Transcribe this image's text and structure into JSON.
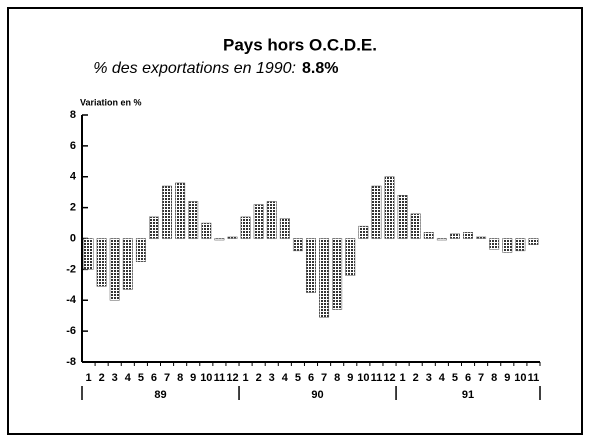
{
  "chart_data": {
    "type": "bar",
    "title": "Pays hors O.C.D.E.",
    "subtitle": "% des exportations en 1990:",
    "subtitle_value": "8.8%",
    "ylabel": "Variation en %",
    "categories": [
      "1",
      "2",
      "3",
      "4",
      "5",
      "6",
      "7",
      "8",
      "9",
      "10",
      "11",
      "12",
      "1",
      "2",
      "3",
      "4",
      "5",
      "6",
      "7",
      "8",
      "9",
      "10",
      "11",
      "12",
      "1",
      "2",
      "3",
      "4",
      "5",
      "6",
      "7",
      "8",
      "9",
      "10",
      "11"
    ],
    "groups": [
      "89",
      "90",
      "91"
    ],
    "values": [
      -2.0,
      -3.1,
      -4.0,
      -3.3,
      -1.5,
      1.4,
      3.4,
      3.6,
      2.4,
      1.0,
      -0.1,
      0.1,
      1.4,
      2.2,
      2.4,
      1.3,
      -0.8,
      -3.5,
      -5.1,
      -4.6,
      -2.4,
      0.8,
      3.4,
      4.0,
      2.8,
      1.6,
      0.4,
      -0.1,
      0.3,
      0.4,
      0.1,
      -0.7,
      -0.9,
      -0.8,
      -0.4
    ],
    "color": "#555555",
    "ylim": [
      -8,
      8
    ],
    "yticks": [
      -8,
      -6,
      -4,
      -2,
      0,
      2,
      4,
      6,
      8
    ]
  }
}
